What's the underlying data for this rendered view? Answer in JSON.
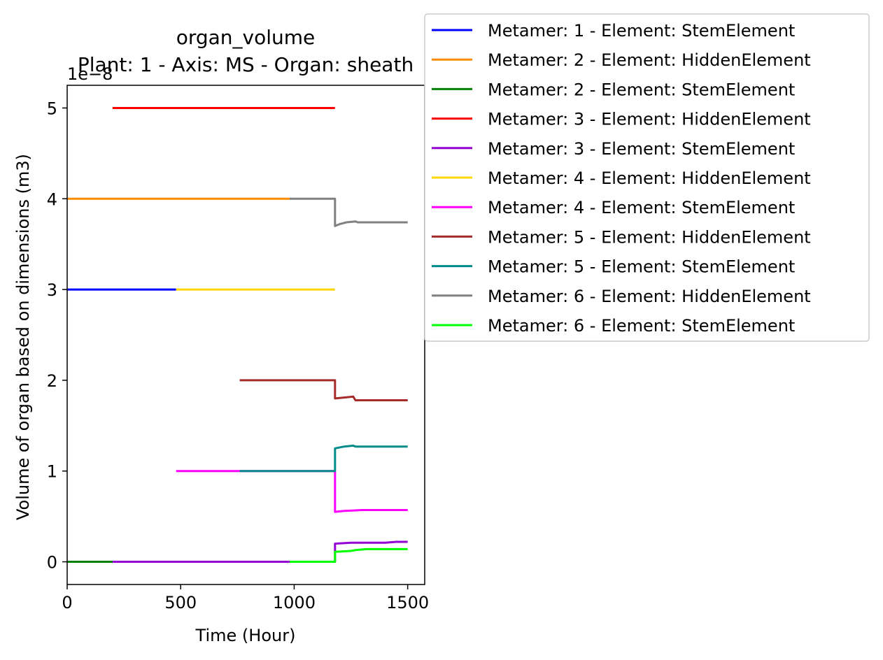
{
  "chart_data": {
    "type": "line",
    "title": "organ_volume",
    "subtitle": "Plant: 1 - Axis: MS - Organ: sheath",
    "xlabel": "Time (Hour)",
    "ylabel": "Volume of organ based on dimensions (m3)",
    "y_multiplier_label": "1e−8",
    "xlim": [
      0,
      1575
    ],
    "ylim": [
      -0.25,
      5.25
    ],
    "y_scale_note": "values in units of 1e-8",
    "xticks": [
      0,
      500,
      1000,
      1500
    ],
    "xtick_labels": [
      "0",
      "500",
      "1000",
      "1500"
    ],
    "yticks": [
      0,
      1,
      2,
      3,
      4,
      5
    ],
    "ytick_labels": [
      "0",
      "1",
      "2",
      "3",
      "4",
      "5"
    ],
    "grid": false,
    "legend_position": "outside-top-right",
    "series": [
      {
        "name": "Metamer: 1 - Element: StemElement",
        "color": "#0000ff",
        "points": [
          [
            0,
            3.0
          ],
          [
            480,
            3.0
          ]
        ]
      },
      {
        "name": "Metamer: 2 - Element: HiddenElement",
        "color": "#ff8c00",
        "points": [
          [
            0,
            4.0
          ],
          [
            980,
            4.0
          ]
        ]
      },
      {
        "name": "Metamer: 2 - Element: StemElement",
        "color": "#008000",
        "points": [
          [
            0,
            0.0
          ],
          [
            200,
            0.0
          ]
        ]
      },
      {
        "name": "Metamer: 3 - Element: HiddenElement",
        "color": "#ff0000",
        "points": [
          [
            200,
            5.0
          ],
          [
            1180,
            5.0
          ]
        ]
      },
      {
        "name": "Metamer: 3 - Element: StemElement",
        "color": "#9400d3",
        "points": [
          [
            200,
            0.0
          ],
          [
            1180,
            0.0
          ],
          [
            1180,
            0.2
          ],
          [
            1250,
            0.21
          ],
          [
            1400,
            0.21
          ],
          [
            1450,
            0.22
          ],
          [
            1500,
            0.22
          ]
        ]
      },
      {
        "name": "Metamer: 4 - Element: HiddenElement",
        "color": "#ffd700",
        "points": [
          [
            480,
            3.0
          ],
          [
            1180,
            3.0
          ]
        ]
      },
      {
        "name": "Metamer: 4 - Element: StemElement",
        "color": "#ff00ff",
        "points": [
          [
            480,
            1.0
          ],
          [
            760,
            1.0
          ],
          [
            1180,
            1.0
          ],
          [
            1180,
            0.55
          ],
          [
            1220,
            0.56
          ],
          [
            1300,
            0.57
          ],
          [
            1500,
            0.57
          ]
        ]
      },
      {
        "name": "Metamer: 5 - Element: HiddenElement",
        "color": "#a52a2a",
        "points": [
          [
            760,
            2.0
          ],
          [
            1180,
            2.0
          ],
          [
            1180,
            1.8
          ],
          [
            1220,
            1.81
          ],
          [
            1260,
            1.82
          ],
          [
            1270,
            1.78
          ],
          [
            1500,
            1.78
          ]
        ]
      },
      {
        "name": "Metamer: 5 - Element: StemElement",
        "color": "#008b8b",
        "points": [
          [
            760,
            1.0
          ],
          [
            1180,
            1.0
          ],
          [
            1180,
            1.25
          ],
          [
            1220,
            1.27
          ],
          [
            1260,
            1.28
          ],
          [
            1270,
            1.27
          ],
          [
            1500,
            1.27
          ]
        ]
      },
      {
        "name": "Metamer: 6 - Element: HiddenElement",
        "color": "#808080",
        "points": [
          [
            980,
            4.0
          ],
          [
            1180,
            4.0
          ],
          [
            1180,
            3.7
          ],
          [
            1200,
            3.72
          ],
          [
            1230,
            3.74
          ],
          [
            1270,
            3.75
          ],
          [
            1280,
            3.74
          ],
          [
            1500,
            3.74
          ]
        ]
      },
      {
        "name": "Metamer: 6 - Element: StemElement",
        "color": "#00ff00",
        "points": [
          [
            980,
            0.0
          ],
          [
            1180,
            0.0
          ],
          [
            1180,
            0.11
          ],
          [
            1250,
            0.12
          ],
          [
            1270,
            0.13
          ],
          [
            1320,
            0.14
          ],
          [
            1500,
            0.14
          ]
        ]
      }
    ]
  }
}
